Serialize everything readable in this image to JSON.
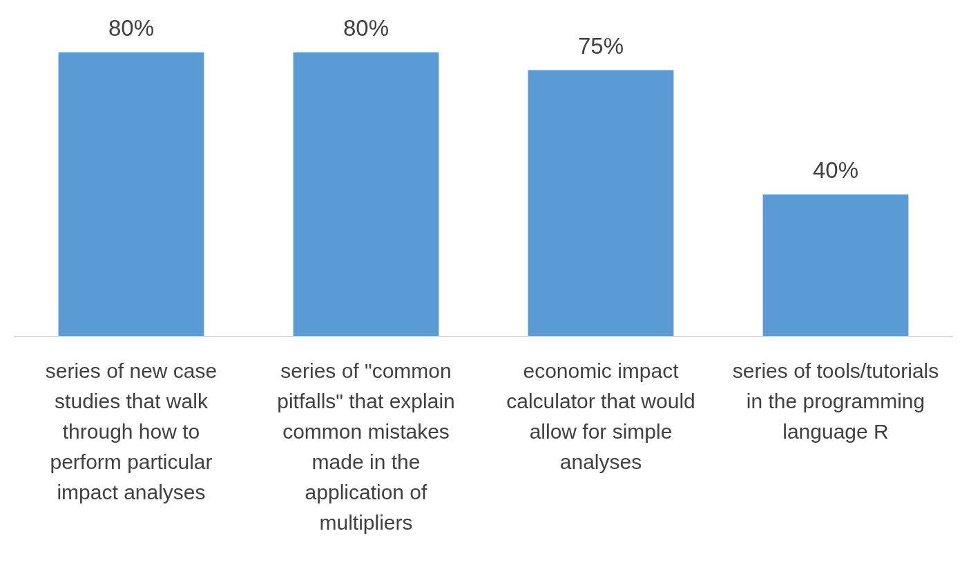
{
  "chart_data": {
    "type": "bar",
    "categories": [
      "series of new case studies that walk through how to perform particular impact analyses",
      "series of \"common pitfalls\" that explain common mistakes made in the application of multipliers",
      "economic impact calculator that would allow for simple analyses",
      "series of tools/tutorials in the programming language R"
    ],
    "values": [
      80,
      80,
      75,
      40
    ],
    "value_labels": [
      "80%",
      "80%",
      "75%",
      "40%"
    ],
    "color": "#5b9bd5"
  }
}
